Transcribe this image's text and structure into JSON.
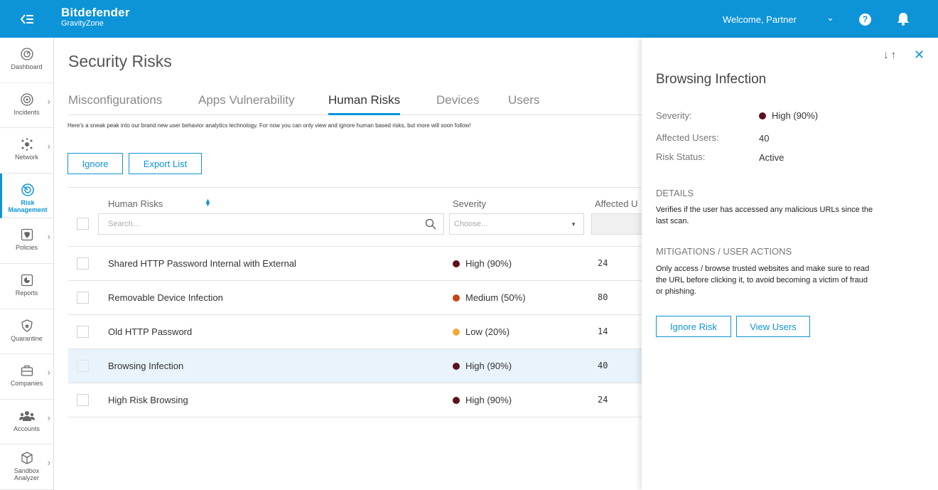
{
  "header": {
    "brand_name": "Bitdefender",
    "brand_sub": "GravityZone",
    "welcome": "Welcome, Partner",
    "caret": "⌄",
    "help": "?"
  },
  "sidebar": {
    "items": [
      {
        "label": "Dashboard",
        "icon": "dashboard-icon"
      },
      {
        "label": "Incidents",
        "icon": "incidents-icon",
        "expandable": true
      },
      {
        "label": "Network",
        "icon": "network-icon",
        "expandable": true
      },
      {
        "label": "Risk Management",
        "icon": "risk-icon",
        "active": true
      },
      {
        "label": "Policies",
        "icon": "policies-icon",
        "expandable": true
      },
      {
        "label": "Reports",
        "icon": "reports-icon"
      },
      {
        "label": "Quarantine",
        "icon": "quarantine-icon"
      },
      {
        "label": "Companies",
        "icon": "companies-icon",
        "expandable": true
      },
      {
        "label": "Accounts",
        "icon": "accounts-icon",
        "expandable": true
      },
      {
        "label": "Sandbox Analyzer",
        "icon": "sandbox-icon",
        "expandable": true
      }
    ]
  },
  "main": {
    "title": "Security Risks",
    "tabs": [
      "Misconfigurations",
      "Apps Vulnerability",
      "Human Risks",
      "Devices",
      "Users"
    ],
    "active_tab": "Human Risks",
    "note": "Here's a sneak peak into our brand new user behavior analytics technology. For now you can only view and ignore human based risks, but more will soon follow!",
    "buttons": {
      "ignore": "Ignore",
      "export": "Export List"
    },
    "columns": {
      "name": "Human Risks",
      "severity": "Severity",
      "affected": "Affected U"
    },
    "search_placeholder": "Search...",
    "severity_placeholder": "Choose...",
    "rows": [
      {
        "name": "Shared HTTP Password Internal with External",
        "severity": "High (90%)",
        "color": "#5c0f1c",
        "affected": "24"
      },
      {
        "name": "Removable Device Infection",
        "severity": "Medium (50%)",
        "color": "#c4461c",
        "affected": "80"
      },
      {
        "name": "Old HTTP Password",
        "severity": "Low (20%)",
        "color": "#f3a93a",
        "affected": "14"
      },
      {
        "name": "Browsing Infection",
        "severity": "High (90%)",
        "color": "#5c0f1c",
        "affected": "40",
        "selected": true
      },
      {
        "name": "High Risk Browsing",
        "severity": "High (90%)",
        "color": "#5c0f1c",
        "affected": "24"
      }
    ]
  },
  "panel": {
    "nav": "↓↑",
    "close": "✕",
    "title": "Browsing Infection",
    "severity_label": "Severity:",
    "severity_value": "High (90%)",
    "severity_color": "#5c0f1c",
    "users_label": "Affected Users:",
    "users_value": "40",
    "status_label": "Risk Status:",
    "status_value": "Active",
    "details_header": "DETAILS",
    "details_text": "Verifies if the user has accessed any malicious URLs since the last scan.",
    "mitigations_header": "MITIGATIONS / USER ACTIONS",
    "mitigations_text": "Only access / browse trusted websites and make sure to read the URL before clicking it, to avoid becoming a victim of fraud or phishing.",
    "ignore_button": "Ignore Risk",
    "view_button": "View Users"
  },
  "colors": {
    "accent": "#0d94d8",
    "high": "#5c0f1c",
    "medium": "#c4461c",
    "low": "#f3a93a"
  }
}
